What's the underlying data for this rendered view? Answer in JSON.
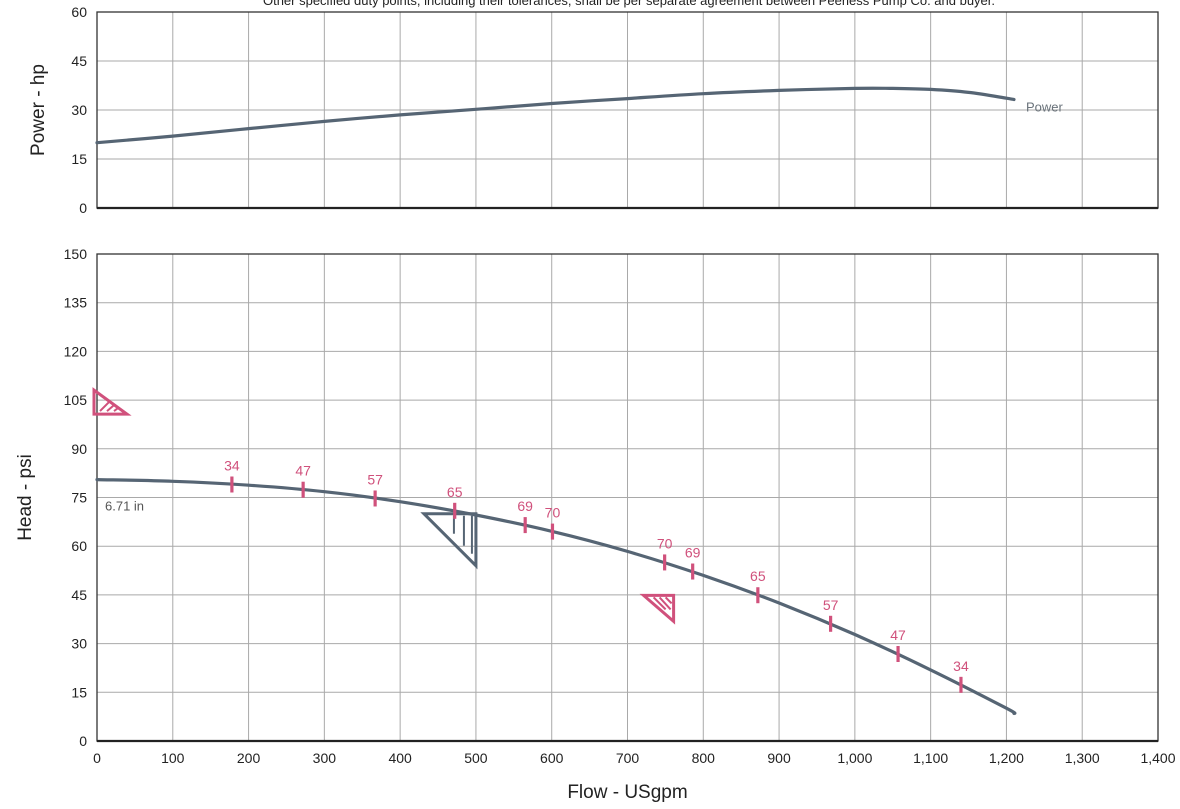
{
  "header_note": "Other specified duty points, including their tolerances, shall be per separate agreement between Peerless Pump Co. and buyer.",
  "colors": {
    "curve": "#566574",
    "efficiency": "#d0517c",
    "grid": "#a9a9a9"
  },
  "chart_data": [
    {
      "type": "line",
      "name": "power-chart",
      "ylabel": "Power - hp",
      "ylim": [
        0,
        60
      ],
      "yticks": [
        0,
        15,
        30,
        45,
        60
      ],
      "xlim": [
        0,
        1400
      ],
      "grid": true,
      "series": [
        {
          "name": "Power",
          "x": [
            0,
            100,
            200,
            300,
            400,
            500,
            600,
            700,
            800,
            900,
            1000,
            1050,
            1100,
            1150,
            1200,
            1210
          ],
          "y": [
            20,
            22,
            24.3,
            26.5,
            28.5,
            30.2,
            32,
            33.5,
            35,
            36,
            36.6,
            36.6,
            36.3,
            35.4,
            33.6,
            33.2
          ]
        }
      ]
    },
    {
      "type": "line",
      "name": "head-chart",
      "xlabel": "Flow - USgpm",
      "ylabel": "Head - psi",
      "xlim": [
        0,
        1400
      ],
      "ylim": [
        0,
        150
      ],
      "xticks": [
        0,
        100,
        200,
        300,
        400,
        500,
        600,
        700,
        800,
        900,
        1000,
        1100,
        1200,
        1300,
        1400
      ],
      "xtick_labels": [
        "0",
        "100",
        "200",
        "300",
        "400",
        "500",
        "600",
        "700",
        "800",
        "900",
        "1,000",
        "1,100",
        "1,200",
        "1,300",
        "1,400"
      ],
      "yticks": [
        0,
        15,
        30,
        45,
        60,
        75,
        90,
        105,
        120,
        135,
        150
      ],
      "grid": true,
      "series": [
        {
          "name": "6.71 in",
          "x": [
            0,
            100,
            200,
            300,
            400,
            500,
            600,
            700,
            800,
            900,
            1000,
            1100,
            1200,
            1210
          ],
          "y": [
            80.5,
            80,
            78.8,
            76.8,
            73.7,
            69.6,
            64.6,
            58.4,
            51,
            42.5,
            32.8,
            21.9,
            10.1,
            8.5
          ]
        }
      ],
      "efficiency_points": [
        {
          "x": 178,
          "y": 79.0,
          "label": "34"
        },
        {
          "x": 272,
          "y": 77.4,
          "label": "47"
        },
        {
          "x": 367,
          "y": 74.7,
          "label": "57"
        },
        {
          "x": 472,
          "y": 70.9,
          "label": "65"
        },
        {
          "x": 565,
          "y": 66.5,
          "label": "69"
        },
        {
          "x": 601,
          "y": 64.5,
          "label": "70"
        },
        {
          "x": 749,
          "y": 55.0,
          "label": "70"
        },
        {
          "x": 786,
          "y": 52.2,
          "label": "69"
        },
        {
          "x": 872,
          "y": 44.9,
          "label": "65"
        },
        {
          "x": 968,
          "y": 36.1,
          "label": "57"
        },
        {
          "x": 1057,
          "y": 26.8,
          "label": "47"
        },
        {
          "x": 1140,
          "y": 17.3,
          "label": "34"
        }
      ],
      "duty_markers": [
        {
          "x": 0,
          "y": 105,
          "color": "#d0517c",
          "icon": "tolerance-triangle"
        },
        {
          "x": 500,
          "y": 70,
          "color": "#566574",
          "icon": "duty-point-triangle"
        },
        {
          "x": 745,
          "y": 43,
          "color": "#d0517c",
          "icon": "tolerance-triangle"
        }
      ]
    }
  ]
}
